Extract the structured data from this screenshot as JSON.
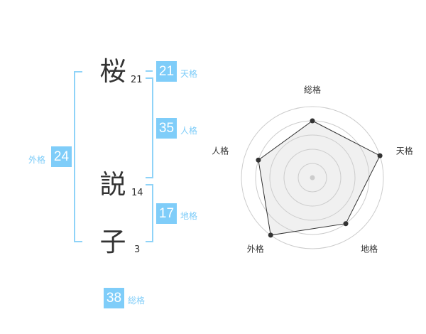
{
  "name": {
    "chars": [
      {
        "char": "桜",
        "strokes": "21"
      },
      {
        "char": "説",
        "strokes": "14"
      },
      {
        "char": "子",
        "strokes": "3"
      }
    ]
  },
  "kaku": {
    "tenkaku": {
      "label": "天格",
      "value": "21"
    },
    "jinkaku": {
      "label": "人格",
      "value": "35"
    },
    "chikaku": {
      "label": "地格",
      "value": "17"
    },
    "gaikaku": {
      "label": "外格",
      "value": "24"
    },
    "soukaku": {
      "label": "総格",
      "value": "38"
    }
  },
  "colors": {
    "accent": "#7fcdf9",
    "line": "#8fd3f8",
    "radar_fill": "#f0f0f0",
    "radar_stroke": "#333333",
    "grid": "#cccccc"
  },
  "chart_data": {
    "type": "radar",
    "axes": [
      "総格",
      "天格",
      "地格",
      "外格",
      "人格"
    ],
    "values": [
      4,
      5,
      4,
      5,
      4
    ],
    "rmax": 5,
    "rings": 5
  }
}
